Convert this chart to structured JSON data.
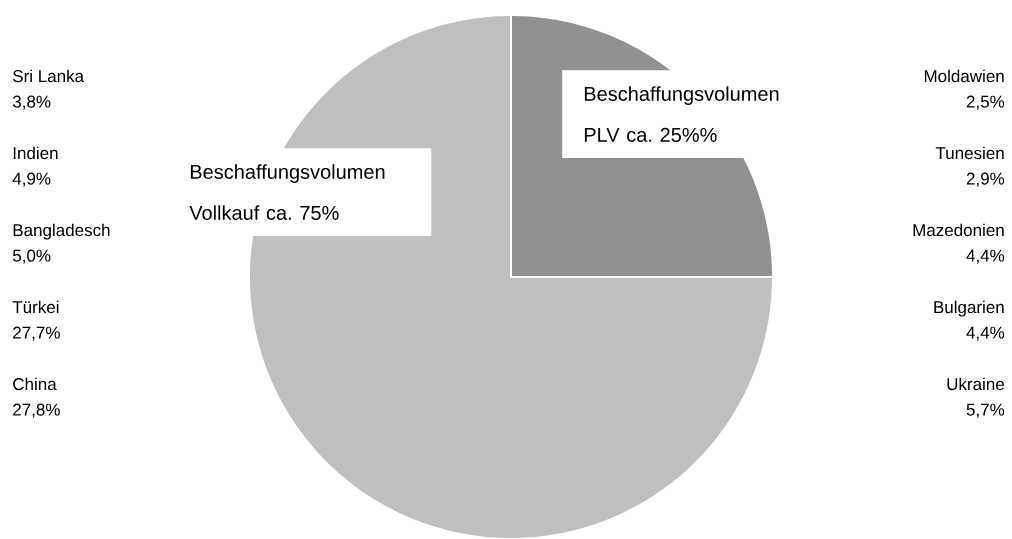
{
  "chart_data": {
    "type": "pie",
    "categories": [
      "Beschaffungsvolumen PLV ca. 25%%",
      "Beschaffungsvolumen Vollkauf ca. 75%"
    ],
    "values": [
      25,
      75
    ],
    "colors": [
      "#919191",
      "#bfbfbf"
    ],
    "annotations": [
      "Sri Lanka",
      "3,8%",
      "Indien",
      "4,9%",
      "Bangladesch",
      "5,0%",
      "Türkei",
      "27,7%",
      "China",
      "27,8%",
      "Moldawien",
      "2,5%",
      "Tunesien",
      "2,9%",
      "Mazedonien",
      "4,4%",
      "Bulgarien",
      "4,4%",
      "Ukraine",
      "5,7%"
    ]
  }
}
